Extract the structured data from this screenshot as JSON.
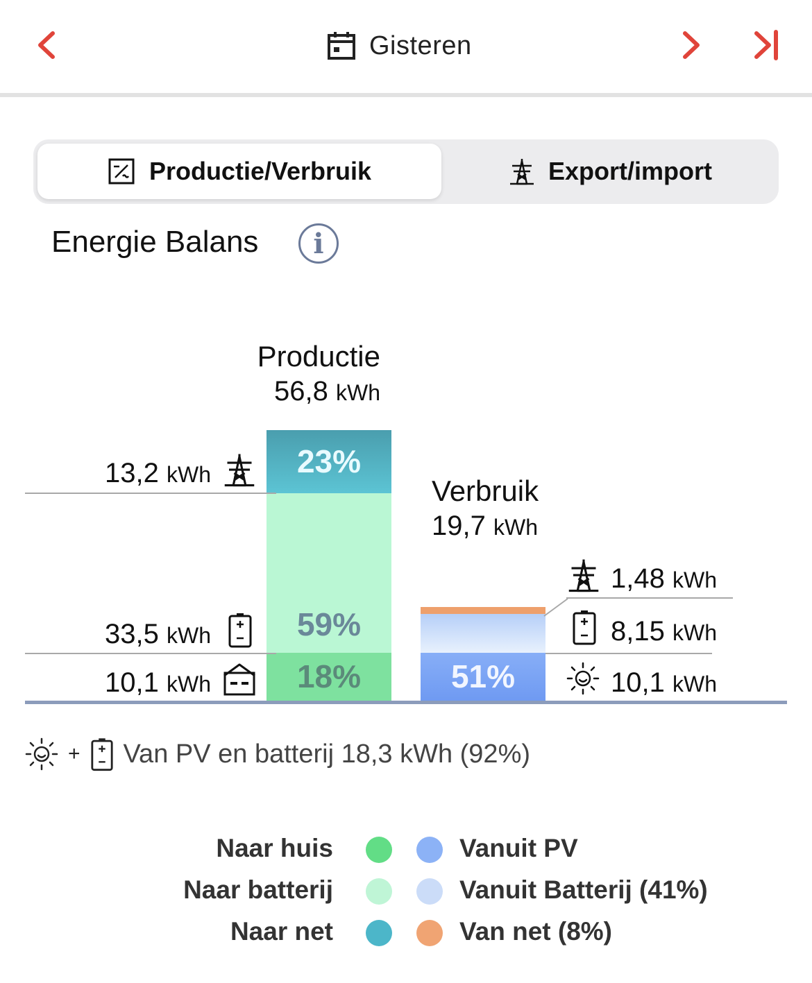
{
  "header": {
    "title": "Gisteren",
    "icons": [
      "chevron-left-icon",
      "calendar-icon",
      "chevron-right-icon",
      "skip-to-end-icon"
    ]
  },
  "tabs": [
    {
      "label": "Productie/Verbruik",
      "icon": "inverter-icon",
      "active": true
    },
    {
      "label": "Export/import",
      "icon": "power-pylon-icon",
      "active": false
    }
  ],
  "section": {
    "title": "Energie Balans",
    "info_icon": "info-icon"
  },
  "chart_data": {
    "type": "bar",
    "bars": [
      {
        "name": "Productie",
        "total_value": "56,8",
        "total_unit": "kWh",
        "segments": [
          {
            "label": "Naar net",
            "value": "13,2",
            "unit": "kWh",
            "percent": 23,
            "percent_label": "23%",
            "color": "#4bb5c8",
            "icon": "power-pylon-icon"
          },
          {
            "label": "Naar batterij",
            "value": "33,5",
            "unit": "kWh",
            "percent": 59,
            "percent_label": "59%",
            "color": "#baf7d4",
            "icon": "battery-icon"
          },
          {
            "label": "Naar huis",
            "value": "10,1",
            "unit": "kWh",
            "percent": 18,
            "percent_label": "18%",
            "color": "#7ee19f",
            "icon": "house-icon"
          }
        ]
      },
      {
        "name": "Verbruik",
        "total_value": "19,7",
        "total_unit": "kWh",
        "segments": [
          {
            "label": "Van net",
            "value": "1,48",
            "unit": "kWh",
            "percent": 8,
            "color": "#eea06c",
            "icon": "power-pylon-icon"
          },
          {
            "label": "Vanuit Batterij",
            "value": "8,15",
            "unit": "kWh",
            "percent": 41,
            "color": "#cfe0fb",
            "icon": "battery-icon"
          },
          {
            "label": "Vanuit PV",
            "value": "10,1",
            "unit": "kWh",
            "percent": 51,
            "percent_label": "51%",
            "color": "#7ea8f6",
            "icon": "sun-icon"
          }
        ]
      }
    ]
  },
  "summary": {
    "text": "Van PV en batterij 18,3 kWh (92%)",
    "plus": "+",
    "icons": [
      "sun-icon",
      "battery-icon"
    ]
  },
  "legend": [
    {
      "left_label": "Naar huis",
      "left_color": "#62dd86",
      "right_label": "Vanuit PV",
      "right_color": "#8cb2f6"
    },
    {
      "left_label": "Naar batterij",
      "left_color": "#bff5d6",
      "right_label": "Vanuit Batterij (41%)",
      "right_color": "#cbdcf8"
    },
    {
      "left_label": "Naar net",
      "left_color": "#4cb6c9",
      "right_label": "Van net (8%)",
      "right_color": "#f0a473"
    }
  ]
}
